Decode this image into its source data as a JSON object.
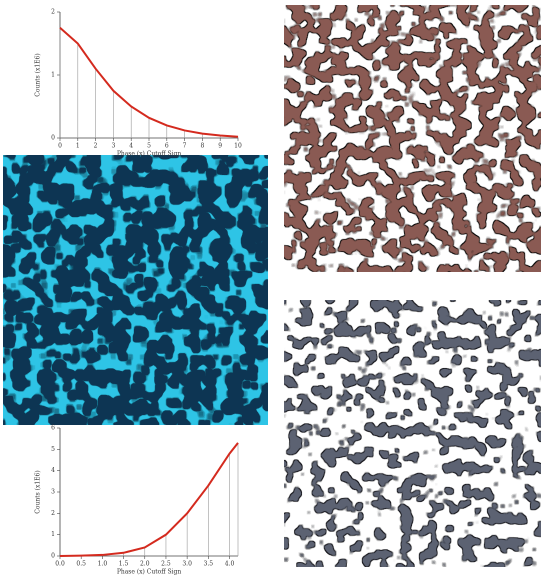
{
  "chart_data": [
    {
      "type": "line",
      "x_label": "Phase (x) Cutoff Sign",
      "y_label": "Counts (x1E6)",
      "x": [
        0,
        1,
        2,
        3,
        4,
        5,
        6,
        7,
        8,
        9,
        10
      ],
      "values": [
        1.75,
        1.5,
        1.1,
        0.75,
        0.5,
        0.32,
        0.2,
        0.12,
        0.07,
        0.04,
        0.02
      ],
      "color": "#d42a1e",
      "xlim": [
        0,
        10
      ],
      "xticks": [
        0,
        1,
        2,
        3,
        4,
        5,
        6,
        7,
        8,
        9,
        10
      ],
      "ylim": [
        0,
        2
      ],
      "yticks": [
        0,
        1,
        2
      ]
    },
    {
      "type": "line",
      "x_label": "Phase (x) Cutoff Sign",
      "y_label": "Counts (x1E6)",
      "x": [
        0,
        0.5,
        1,
        1.5,
        2,
        2.5,
        3,
        3.5,
        4,
        4.2
      ],
      "values": [
        0,
        0.02,
        0.05,
        0.15,
        0.4,
        1.0,
        2.0,
        3.3,
        4.8,
        5.3
      ],
      "color": "#d42a1e",
      "xlim": [
        0,
        4.2
      ],
      "xticks": [
        {
          "value": 0,
          "label": "0.0"
        },
        0.5,
        {
          "value": 1,
          "label": "1.0"
        },
        1.5,
        {
          "value": 2,
          "label": "2.0"
        },
        2.5,
        {
          "value": 3,
          "label": "3.0"
        },
        3.5,
        {
          "value": 4,
          "label": "4.0"
        }
      ],
      "ylim": [
        0,
        6
      ],
      "yticks": [
        0,
        1,
        2,
        3,
        4,
        5,
        6
      ]
    }
  ]
}
